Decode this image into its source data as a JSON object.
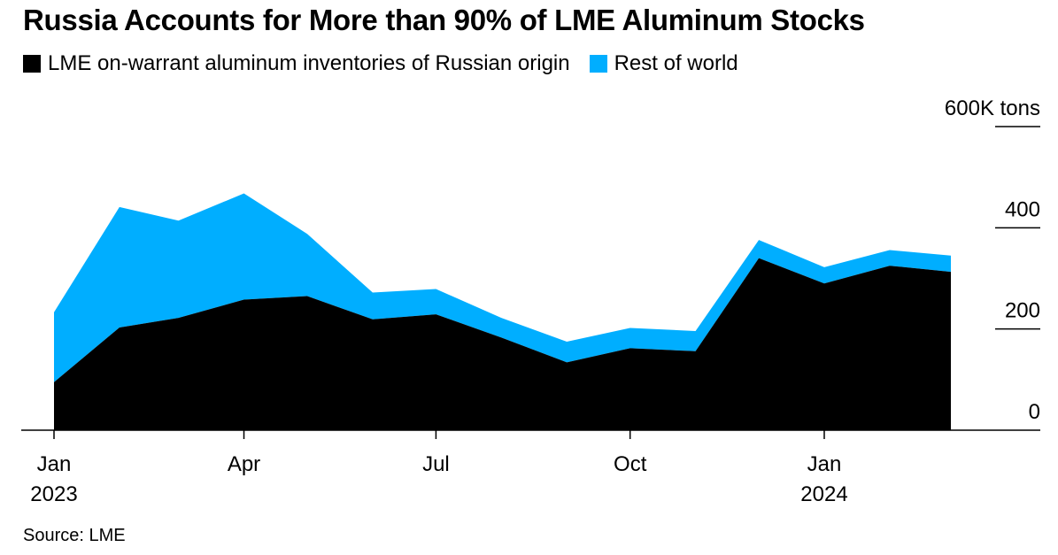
{
  "colors": {
    "russia": "#000000",
    "rest": "#00aeff"
  },
  "chart_data": {
    "type": "area",
    "stacked": true,
    "title": "Russia Accounts for More than 90% of LME Aluminum Stocks",
    "source": "Source: LME",
    "y_unit_label": "600K tons",
    "ylim": [
      0,
      600
    ],
    "yticks": [
      {
        "value": 0,
        "label": "0"
      },
      {
        "value": 200,
        "label": "200"
      },
      {
        "value": 400,
        "label": "400"
      },
      {
        "value": 600,
        "label": "600K tons"
      }
    ],
    "xticks": [
      {
        "date": "2023-01-01",
        "month": "Jan",
        "year": "2023"
      },
      {
        "date": "2023-04-01",
        "month": "Apr",
        "year": ""
      },
      {
        "date": "2023-07-01",
        "month": "Jul",
        "year": ""
      },
      {
        "date": "2023-10-01",
        "month": "Oct",
        "year": ""
      },
      {
        "date": "2024-01-01",
        "month": "Jan",
        "year": "2024"
      }
    ],
    "x_range": [
      "2023-01-01",
      "2024-02-20"
    ],
    "x": [
      "2023-01-01",
      "2023-02-01",
      "2023-03-01",
      "2023-04-01",
      "2023-05-01",
      "2023-06-01",
      "2023-07-01",
      "2023-08-01",
      "2023-09-01",
      "2023-10-01",
      "2023-11-01",
      "2023-12-01",
      "2024-01-01",
      "2024-02-01",
      "2024-03-01"
    ],
    "series": [
      {
        "name": "LME on-warrant aluminum inventories of Russian origin",
        "values": [
          95,
          203,
          222,
          258,
          265,
          219,
          229,
          183,
          134,
          162,
          156,
          340,
          290,
          325,
          313
        ]
      },
      {
        "name": "Rest of world",
        "values": [
          138,
          238,
          192,
          210,
          123,
          53,
          50,
          39,
          41,
          40,
          40,
          36,
          32,
          31,
          32
        ]
      }
    ]
  }
}
